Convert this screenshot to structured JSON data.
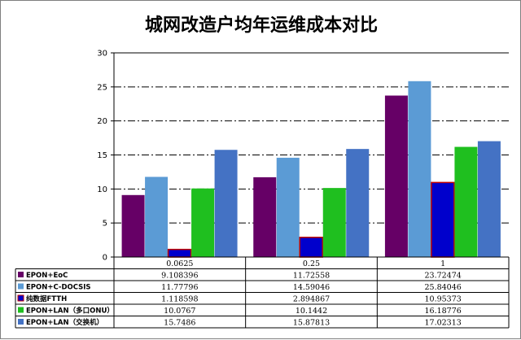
{
  "chart_data": {
    "type": "bar",
    "title": "城网改造户均年运维成本对比",
    "categories": [
      "0.0625",
      "0.25",
      "1"
    ],
    "ylim": [
      0,
      30
    ],
    "yticks": [
      "0",
      "5",
      "10",
      "15",
      "20",
      "25",
      "30"
    ],
    "grid": true,
    "legend": "data-table-below",
    "series": [
      {
        "name": "EPON+EoC",
        "color": "#660066",
        "values": [
          9.108396,
          11.72558,
          23.72474
        ],
        "labels": [
          "9.108396",
          "11.72558",
          "23.72474"
        ]
      },
      {
        "name": "EPON+C-DOCSIS",
        "color": "#5b9bd5",
        "values": [
          11.77796,
          14.59046,
          25.84046
        ],
        "labels": [
          "11.77796",
          "14.59046",
          "25.84046"
        ]
      },
      {
        "name": "纯数据FTTH",
        "color": "#0000cc",
        "edge": "#c00000",
        "values": [
          1.118598,
          2.894867,
          10.95373
        ],
        "labels": [
          "1.118598",
          "2.894867",
          "10.95373"
        ]
      },
      {
        "name": "EPON+LAN（多口ONU）",
        "color": "#1fbf1f",
        "values": [
          10.0767,
          10.1442,
          16.18776
        ],
        "labels": [
          "10.0767",
          "10.1442",
          "16.18776"
        ]
      },
      {
        "name": "EPON+LAN（交换机）",
        "color": "#4472c4",
        "values": [
          15.7486,
          15.87813,
          17.02313
        ],
        "labels": [
          "15.7486",
          "15.87813",
          "17.02313"
        ]
      }
    ]
  }
}
